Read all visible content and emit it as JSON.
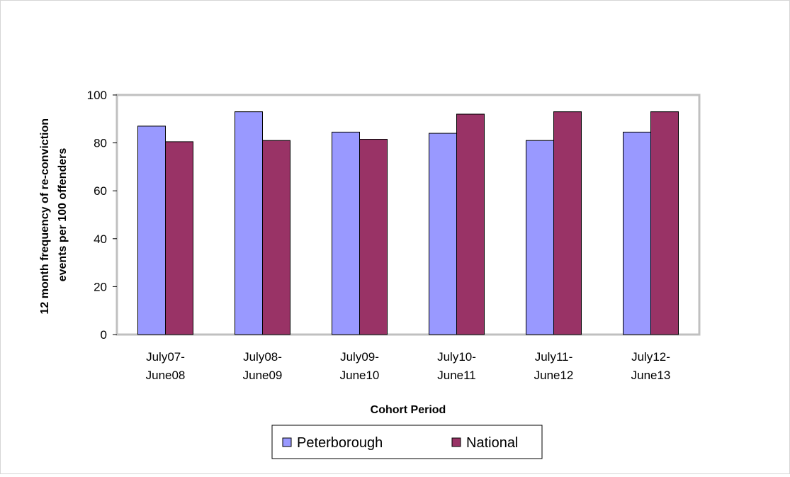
{
  "chart_data": {
    "type": "bar",
    "categories": [
      [
        "July07-",
        "June08"
      ],
      [
        "July08-",
        "June09"
      ],
      [
        "July09-",
        "June10"
      ],
      [
        "July10-",
        "June11"
      ],
      [
        "July11-",
        "June12"
      ],
      [
        "July12-",
        "June13"
      ]
    ],
    "series": [
      {
        "name": "Peterborough",
        "color": "#9999ff",
        "values": [
          87,
          93,
          84.5,
          84,
          81,
          84.5
        ]
      },
      {
        "name": "National",
        "color": "#993366",
        "values": [
          80.5,
          81,
          81.5,
          92,
          93,
          93
        ]
      }
    ],
    "xlabel": "Cohort Period",
    "ylabel": [
      "12 month frequency of re-conviction",
      "events per 100 offenders"
    ],
    "ylim": [
      0,
      100
    ],
    "yticks": [
      0,
      20,
      40,
      60,
      80,
      100
    ],
    "grid": false,
    "legend_position": "bottom"
  }
}
